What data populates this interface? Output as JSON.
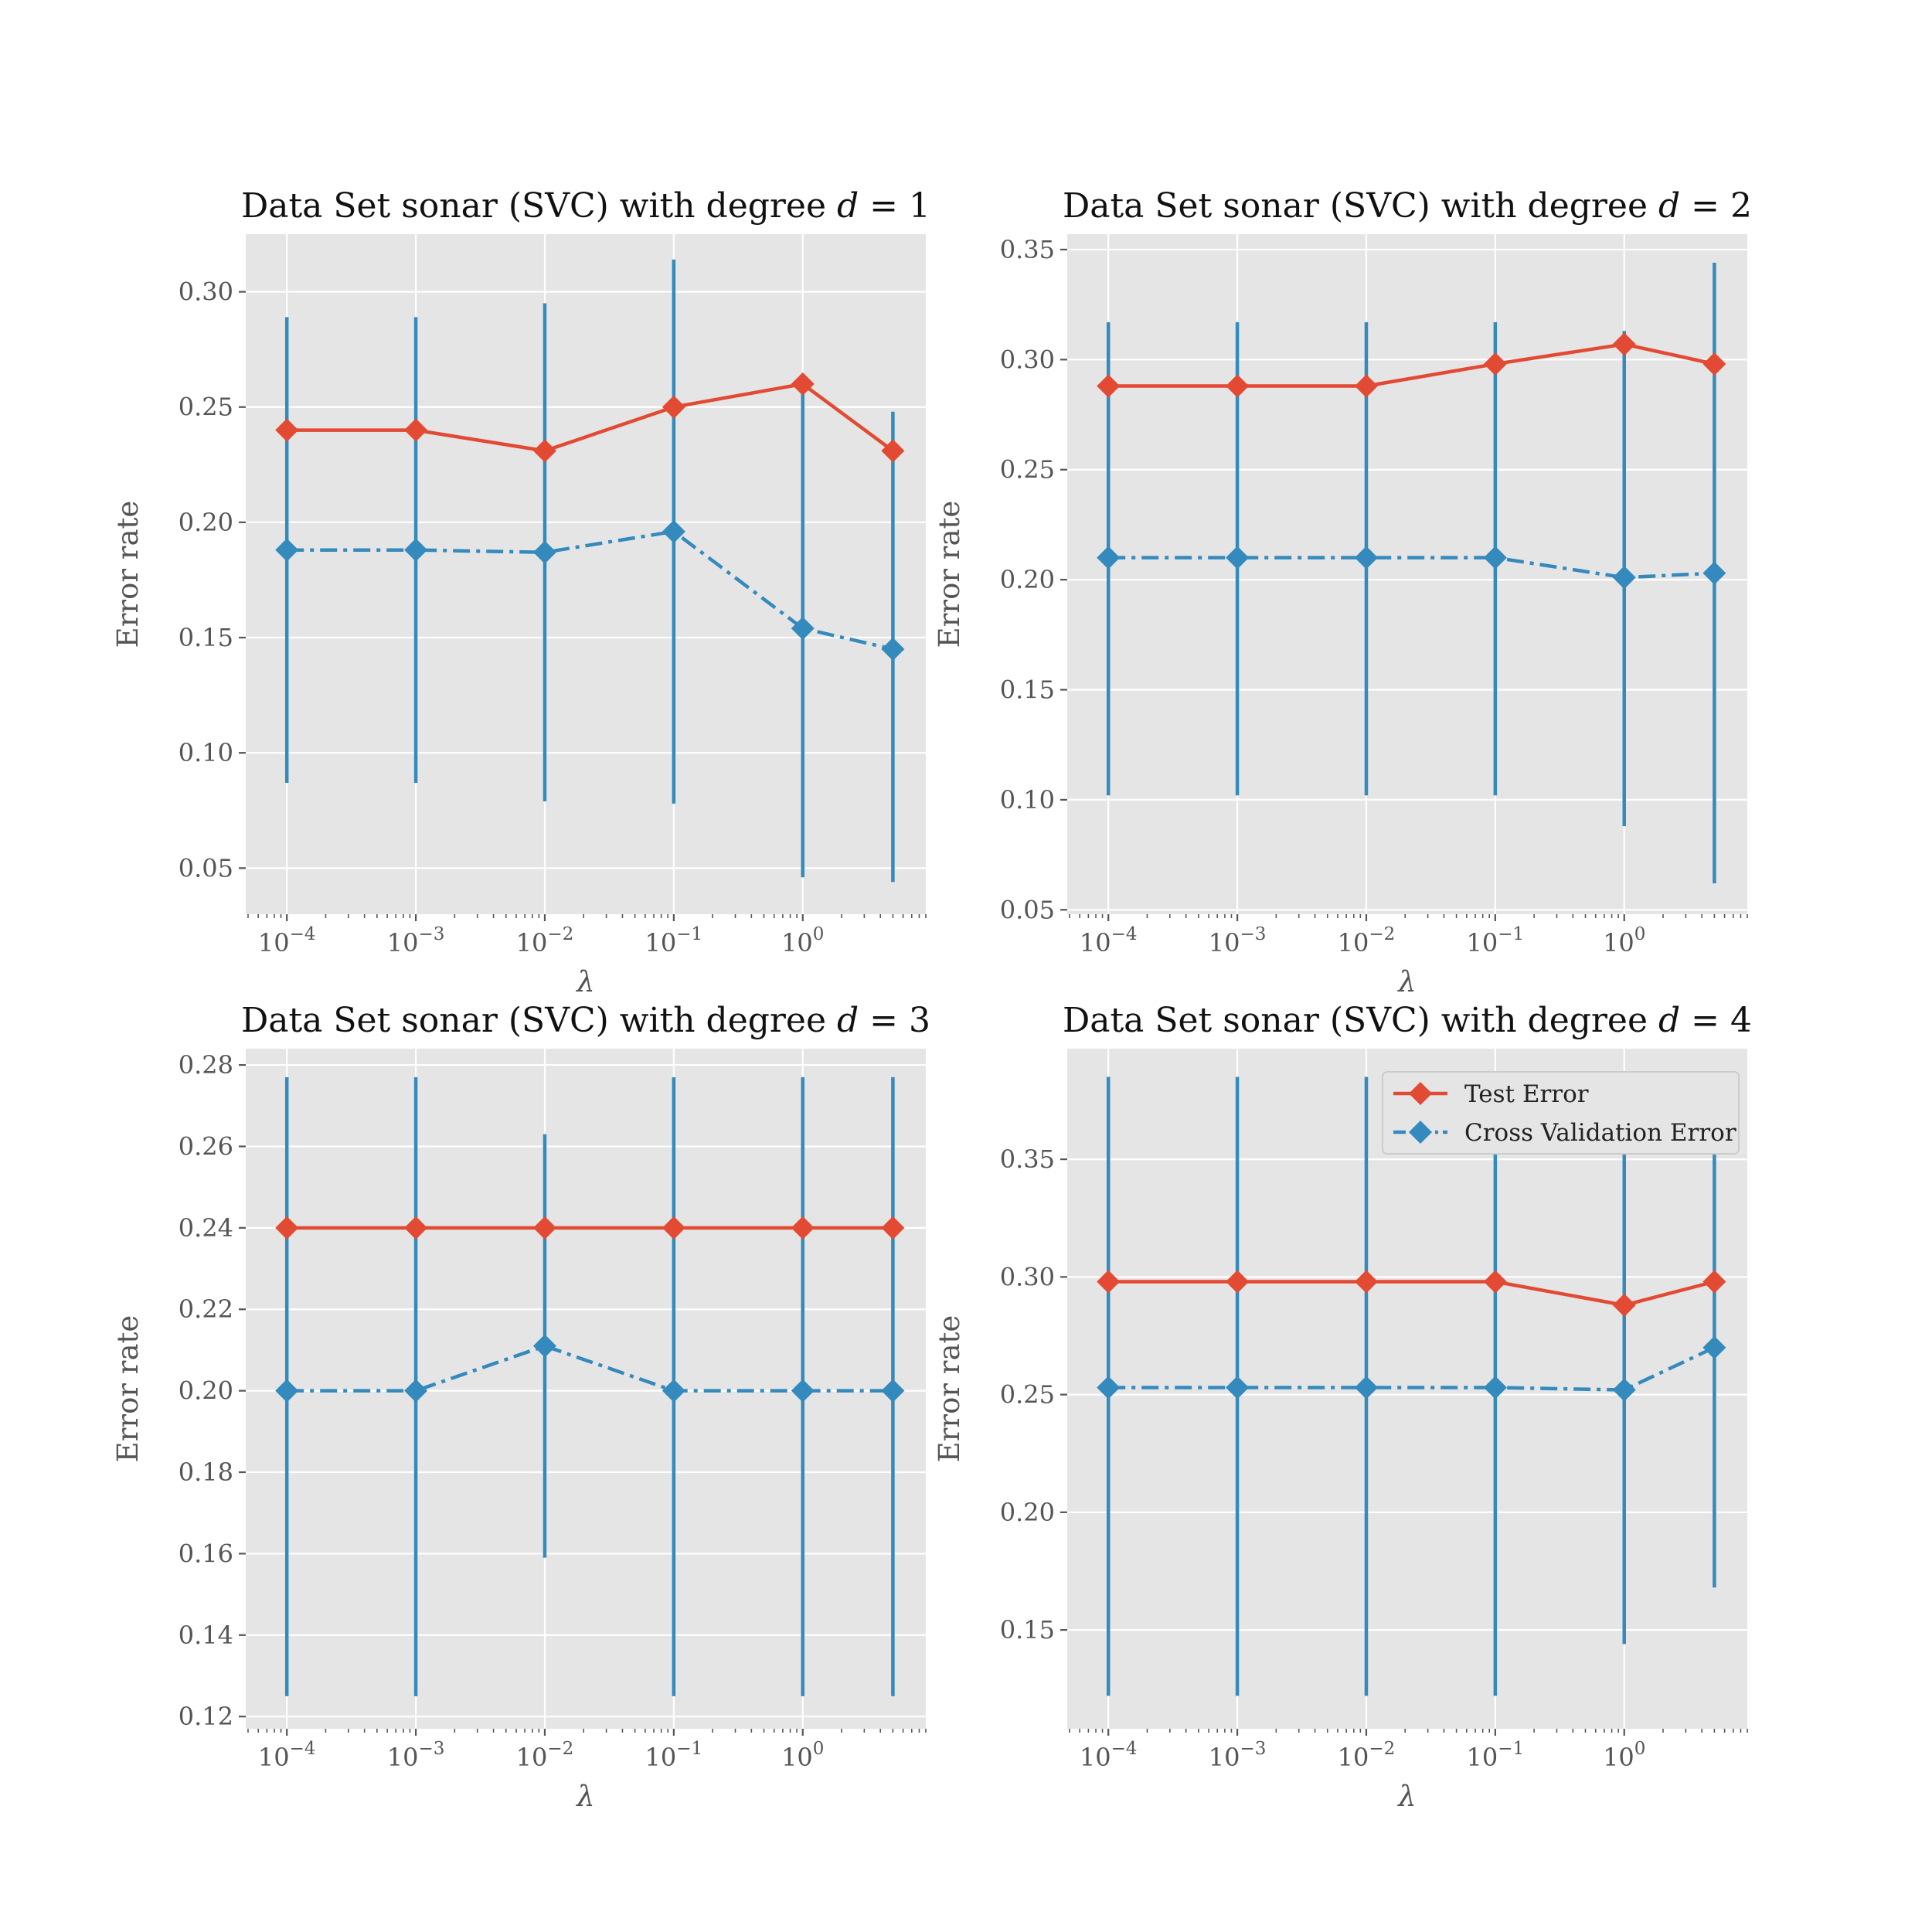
{
  "legend": {
    "entries": [
      {
        "label": "Test Error",
        "color": "#e24a33",
        "style": "solid"
      },
      {
        "label": "Cross Validation Error",
        "color": "#348abd",
        "style": "dashdot"
      }
    ]
  },
  "colors": {
    "test": "#e24a33",
    "cv": "#348abd",
    "background": "#e5e5e5",
    "grid": "#ffffff"
  },
  "chart_data": [
    {
      "type": "line",
      "title": "Data Set sonar (SVC) with degree d = 1",
      "title_prefix": "Data Set sonar (SVC) with degree ",
      "title_var": "d",
      "title_suffix": " = 1",
      "xlabel": "λ",
      "ylabel": "Error rate",
      "xscale": "log",
      "x": [
        0.0001,
        0.001,
        0.01,
        0.1,
        1,
        5
      ],
      "xlim": [
        4.8e-05,
        9
      ],
      "ylim": [
        0.03,
        0.325
      ],
      "yticks": [
        "0.05",
        "0.10",
        "0.15",
        "0.20",
        "0.25",
        "0.30"
      ],
      "xticks": [
        {
          "base": "10",
          "exp": "−4"
        },
        {
          "base": "10",
          "exp": "−3"
        },
        {
          "base": "10",
          "exp": "−2"
        },
        {
          "base": "10",
          "exp": "−1"
        },
        {
          "base": "10",
          "exp": "0"
        }
      ],
      "series": [
        {
          "name": "Test Error",
          "values": [
            0.24,
            0.24,
            0.231,
            0.25,
            0.26,
            0.231
          ]
        },
        {
          "name": "Cross Validation Error",
          "values": [
            0.188,
            0.188,
            0.187,
            0.196,
            0.154,
            0.145
          ],
          "err_low": [
            0.087,
            0.087,
            0.079,
            0.078,
            0.046,
            0.044
          ],
          "err_high": [
            0.289,
            0.289,
            0.295,
            0.314,
            0.26,
            0.248
          ]
        }
      ],
      "grid": true,
      "legend": false
    },
    {
      "type": "line",
      "title": "Data Set sonar (SVC) with degree d = 2",
      "title_prefix": "Data Set sonar (SVC) with degree ",
      "title_var": "d",
      "title_suffix": " = 2",
      "xlabel": "λ",
      "ylabel": "Error rate",
      "xscale": "log",
      "x": [
        0.0001,
        0.001,
        0.01,
        0.1,
        1,
        5
      ],
      "xlim": [
        4.8e-05,
        9
      ],
      "ylim": [
        0.048,
        0.357
      ],
      "yticks": [
        "0.05",
        "0.10",
        "0.15",
        "0.20",
        "0.25",
        "0.30",
        "0.35"
      ],
      "xticks": [
        {
          "base": "10",
          "exp": "−4"
        },
        {
          "base": "10",
          "exp": "−3"
        },
        {
          "base": "10",
          "exp": "−2"
        },
        {
          "base": "10",
          "exp": "−1"
        },
        {
          "base": "10",
          "exp": "0"
        }
      ],
      "series": [
        {
          "name": "Test Error",
          "values": [
            0.288,
            0.288,
            0.288,
            0.298,
            0.307,
            0.298
          ]
        },
        {
          "name": "Cross Validation Error",
          "values": [
            0.21,
            0.21,
            0.21,
            0.21,
            0.201,
            0.203
          ],
          "err_low": [
            0.102,
            0.102,
            0.102,
            0.102,
            0.088,
            0.062
          ],
          "err_high": [
            0.317,
            0.317,
            0.317,
            0.317,
            0.313,
            0.344
          ]
        }
      ],
      "grid": true,
      "legend": false
    },
    {
      "type": "line",
      "title": "Data Set sonar (SVC) with degree d = 3",
      "title_prefix": "Data Set sonar (SVC) with degree ",
      "title_var": "d",
      "title_suffix": " = 3",
      "xlabel": "λ",
      "ylabel": "Error rate",
      "xscale": "log",
      "x": [
        0.0001,
        0.001,
        0.01,
        0.1,
        1,
        5
      ],
      "xlim": [
        4.8e-05,
        9
      ],
      "ylim": [
        0.117,
        0.284
      ],
      "yticks": [
        "0.12",
        "0.14",
        "0.16",
        "0.18",
        "0.20",
        "0.22",
        "0.24",
        "0.26",
        "0.28"
      ],
      "xticks": [
        {
          "base": "10",
          "exp": "−4"
        },
        {
          "base": "10",
          "exp": "−3"
        },
        {
          "base": "10",
          "exp": "−2"
        },
        {
          "base": "10",
          "exp": "−1"
        },
        {
          "base": "10",
          "exp": "0"
        }
      ],
      "series": [
        {
          "name": "Test Error",
          "values": [
            0.24,
            0.24,
            0.24,
            0.24,
            0.24,
            0.24
          ]
        },
        {
          "name": "Cross Validation Error",
          "values": [
            0.2,
            0.2,
            0.211,
            0.2,
            0.2,
            0.2
          ],
          "err_low": [
            0.125,
            0.125,
            0.159,
            0.125,
            0.125,
            0.125
          ],
          "err_high": [
            0.277,
            0.277,
            0.263,
            0.277,
            0.277,
            0.277
          ]
        }
      ],
      "grid": true,
      "legend": false
    },
    {
      "type": "line",
      "title": "Data Set sonar (SVC) with degree d = 4",
      "title_prefix": "Data Set sonar (SVC) with degree ",
      "title_var": "d",
      "title_suffix": " = 4",
      "xlabel": "λ",
      "ylabel": "Error rate",
      "xscale": "log",
      "x": [
        0.0001,
        0.001,
        0.01,
        0.1,
        1,
        5
      ],
      "xlim": [
        4.8e-05,
        9
      ],
      "ylim": [
        0.108,
        0.397
      ],
      "yticks": [
        "0.15",
        "0.20",
        "0.25",
        "0.30",
        "0.35"
      ],
      "xticks": [
        {
          "base": "10",
          "exp": "−4"
        },
        {
          "base": "10",
          "exp": "−3"
        },
        {
          "base": "10",
          "exp": "−2"
        },
        {
          "base": "10",
          "exp": "−1"
        },
        {
          "base": "10",
          "exp": "0"
        }
      ],
      "series": [
        {
          "name": "Test Error",
          "values": [
            0.298,
            0.298,
            0.298,
            0.298,
            0.288,
            0.298
          ]
        },
        {
          "name": "Cross Validation Error",
          "values": [
            0.253,
            0.253,
            0.253,
            0.253,
            0.252,
            0.27
          ],
          "err_low": [
            0.122,
            0.122,
            0.122,
            0.122,
            0.144,
            0.168
          ],
          "err_high": [
            0.385,
            0.385,
            0.385,
            0.385,
            0.36,
            0.372
          ]
        }
      ],
      "grid": true,
      "legend": true,
      "legend_position": "upper right"
    }
  ]
}
